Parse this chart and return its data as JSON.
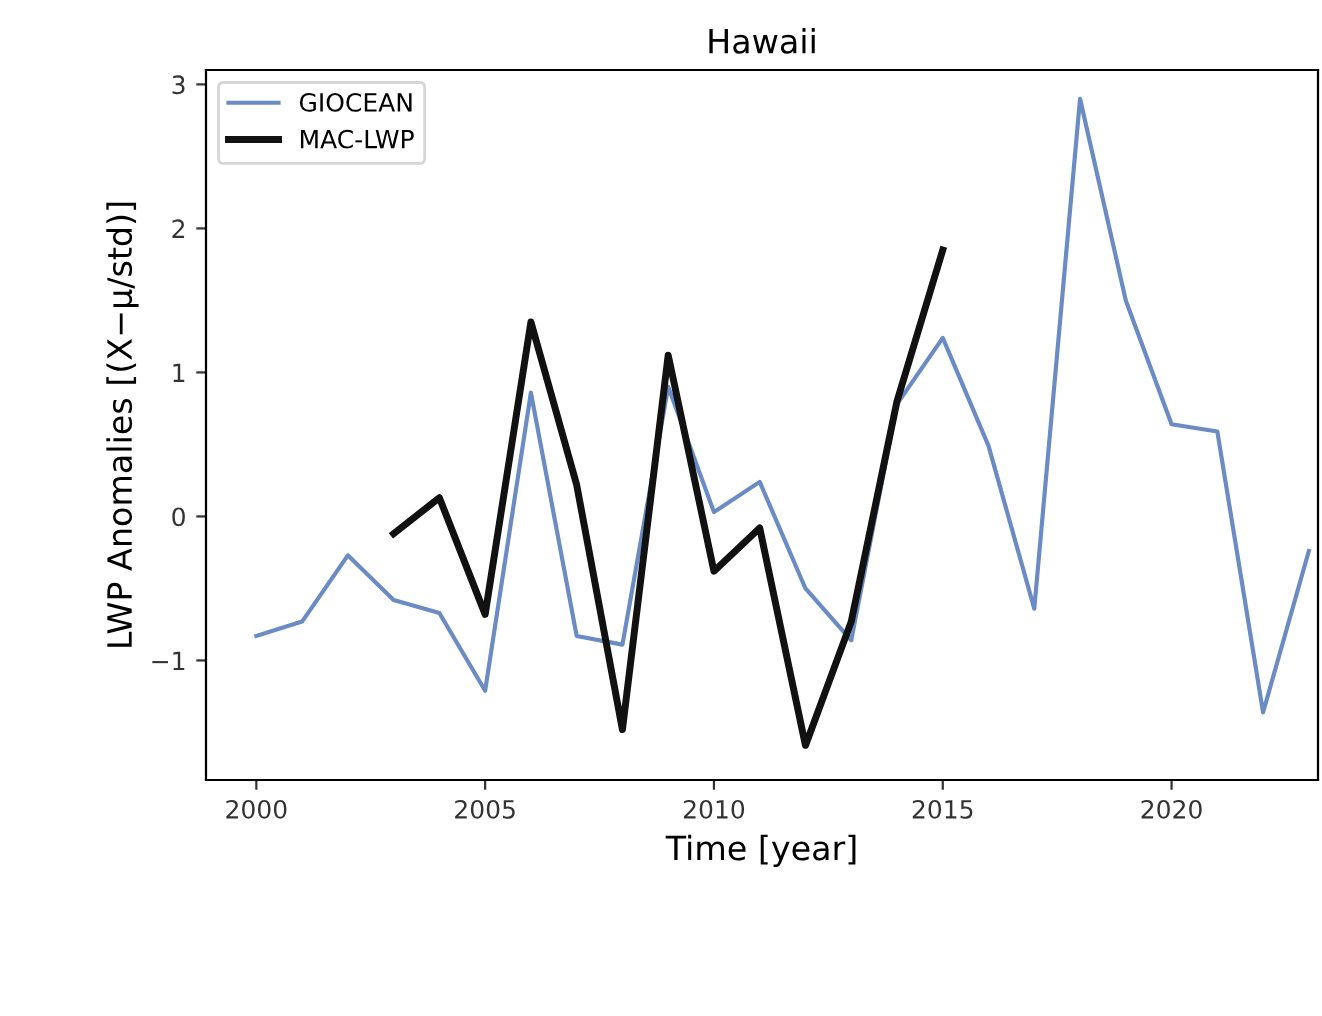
{
  "chart_data": {
    "type": "line",
    "title": "Hawaii",
    "xlabel": "Time [year]",
    "ylabel": "LWP Anomalies [(X−μ/std)]",
    "xlim": [
      1998.9,
      2023.2
    ],
    "xticks": [
      2000,
      2005,
      2010,
      2015,
      2020
    ],
    "ylim": [
      -1.83,
      3.1
    ],
    "yticks": [
      -1,
      0,
      1,
      2,
      3
    ],
    "legend": "top left",
    "grid": false,
    "series": [
      {
        "name": "GIOCEAN",
        "color": "#6a8bc3",
        "x": [
          2000,
          2001,
          2002,
          2003,
          2004,
          2005,
          2006,
          2007,
          2008,
          2009,
          2010,
          2011,
          2012,
          2013,
          2014,
          2015,
          2016,
          2017,
          2018,
          2019,
          2020,
          2021,
          2022,
          2023
        ],
        "values": [
          -0.83,
          -0.73,
          -0.27,
          -0.58,
          -0.67,
          -1.21,
          0.86,
          -0.83,
          -0.89,
          0.9,
          0.03,
          0.24,
          -0.5,
          -0.86,
          0.78,
          1.24,
          0.49,
          -0.64,
          2.9,
          1.5,
          0.64,
          0.59,
          -1.36,
          -0.24
        ]
      },
      {
        "name": "MAC-LWP",
        "color": "#111111",
        "x": [
          2003,
          2004,
          2005,
          2006,
          2007,
          2008,
          2009,
          2010,
          2011,
          2012,
          2013,
          2014,
          2015
        ],
        "values": [
          -0.12,
          0.13,
          -0.68,
          1.35,
          0.22,
          -1.48,
          1.12,
          -0.38,
          -0.08,
          -1.59,
          -0.73,
          0.8,
          1.85
        ]
      }
    ]
  }
}
